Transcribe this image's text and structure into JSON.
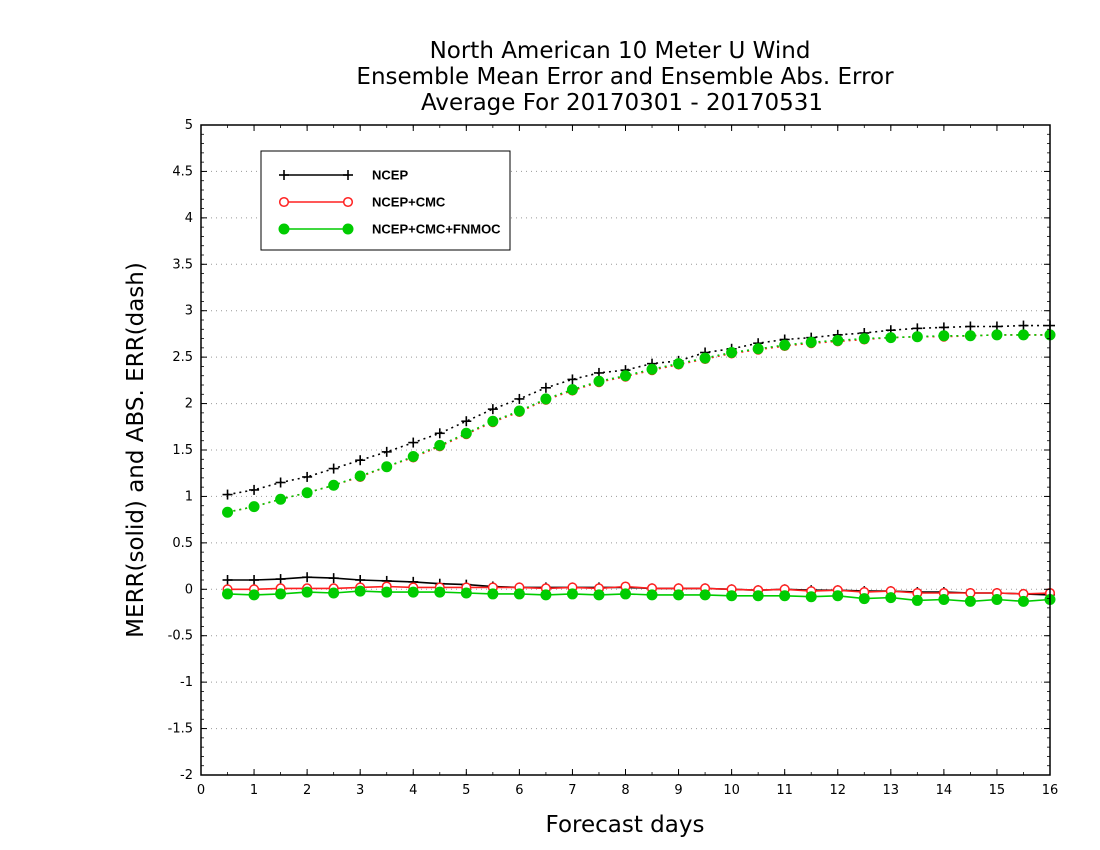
{
  "chart_data": {
    "type": "line",
    "title": [
      "North American 10 Meter U Wind",
      "Ensemble Mean Error and Ensemble Abs. Error",
      "Average For 20170301 - 20170531"
    ],
    "xlabel": "Forecast days",
    "ylabel": "MERR(solid) and ABS. ERR(dash)",
    "xlim": [
      0,
      16
    ],
    "ylim": [
      -2,
      5
    ],
    "xticks": [
      "0",
      "1",
      "2",
      "3",
      "4",
      "5",
      "6",
      "7",
      "8",
      "9",
      "10",
      "11",
      "12",
      "13",
      "14",
      "15",
      "16"
    ],
    "yticks": [
      "-2",
      "-1.5",
      "-1",
      "-0.5",
      "0",
      "0.5",
      "1",
      "1.5",
      "2",
      "2.5",
      "3",
      "3.5",
      "4",
      "4.5",
      "5"
    ],
    "grid": "horizontal dotted",
    "legend_position": "top-left",
    "x": [
      0.5,
      1,
      1.5,
      2,
      2.5,
      3,
      3.5,
      4,
      4.5,
      5,
      5.5,
      6,
      6.5,
      7,
      7.5,
      8,
      8.5,
      9,
      9.5,
      10,
      10.5,
      11,
      11.5,
      12,
      12.5,
      13,
      13.5,
      14,
      14.5,
      15,
      15.5,
      16
    ],
    "series": [
      {
        "name": "NCEP",
        "color": "#000000",
        "marker": "plus",
        "merr": [
          0.1,
          0.1,
          0.11,
          0.13,
          0.12,
          0.1,
          0.09,
          0.08,
          0.06,
          0.05,
          0.03,
          0.02,
          0.02,
          0.02,
          0.02,
          0.02,
          0.01,
          0.01,
          0.01,
          0.0,
          -0.01,
          0.0,
          -0.01,
          -0.01,
          -0.02,
          -0.02,
          -0.03,
          -0.03,
          -0.04,
          -0.04,
          -0.05,
          -0.06
        ],
        "abs_err": [
          1.02,
          1.07,
          1.15,
          1.21,
          1.3,
          1.39,
          1.48,
          1.58,
          1.68,
          1.81,
          1.94,
          2.05,
          2.17,
          2.26,
          2.33,
          2.36,
          2.43,
          2.46,
          2.55,
          2.59,
          2.65,
          2.69,
          2.71,
          2.74,
          2.76,
          2.79,
          2.81,
          2.82,
          2.83,
          2.83,
          2.84,
          2.84
        ]
      },
      {
        "name": "NCEP+CMC",
        "color": "#ff2020",
        "marker": "open-circle",
        "merr": [
          0.0,
          0.0,
          0.01,
          0.01,
          0.01,
          0.02,
          0.03,
          0.02,
          0.02,
          0.02,
          0.02,
          0.02,
          0.01,
          0.02,
          0.01,
          0.03,
          0.01,
          0.01,
          0.01,
          0.0,
          -0.01,
          0.0,
          -0.02,
          -0.01,
          -0.03,
          -0.02,
          -0.04,
          -0.04,
          -0.04,
          -0.04,
          -0.05,
          -0.04
        ],
        "abs_err": [
          0.83,
          0.89,
          0.97,
          1.04,
          1.12,
          1.21,
          1.32,
          1.42,
          1.54,
          1.67,
          1.8,
          1.91,
          2.04,
          2.14,
          2.23,
          2.29,
          2.36,
          2.42,
          2.48,
          2.54,
          2.58,
          2.62,
          2.65,
          2.67,
          2.69,
          2.71,
          2.72,
          2.72,
          2.73,
          2.74,
          2.74,
          2.74
        ]
      },
      {
        "name": "NCEP+CMC+FNMOC",
        "color": "#00cc00",
        "marker": "filled-circle",
        "merr": [
          -0.05,
          -0.06,
          -0.05,
          -0.03,
          -0.04,
          -0.02,
          -0.03,
          -0.03,
          -0.03,
          -0.04,
          -0.05,
          -0.05,
          -0.06,
          -0.05,
          -0.06,
          -0.05,
          -0.06,
          -0.06,
          -0.06,
          -0.07,
          -0.07,
          -0.07,
          -0.08,
          -0.07,
          -0.1,
          -0.09,
          -0.12,
          -0.11,
          -0.13,
          -0.11,
          -0.13,
          -0.11
        ],
        "abs_err": [
          0.83,
          0.89,
          0.97,
          1.04,
          1.12,
          1.22,
          1.32,
          1.43,
          1.55,
          1.68,
          1.81,
          1.92,
          2.05,
          2.15,
          2.24,
          2.3,
          2.37,
          2.43,
          2.49,
          2.55,
          2.59,
          2.63,
          2.66,
          2.68,
          2.7,
          2.71,
          2.72,
          2.73,
          2.73,
          2.74,
          2.74,
          2.74
        ]
      }
    ]
  }
}
